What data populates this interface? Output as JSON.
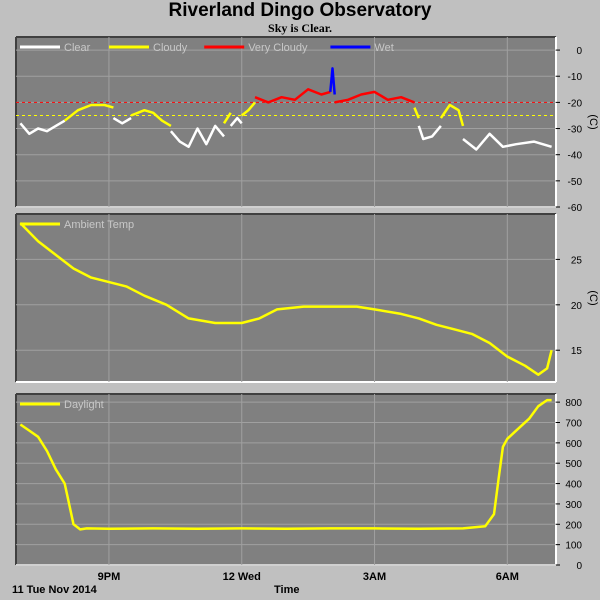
{
  "header": {
    "title": "Riverland Dingo Observatory",
    "subtitle": "Sky is Clear."
  },
  "footer": {
    "date_label": "11 Tue Nov 2014",
    "xlabel": "Time"
  },
  "colors": {
    "background": "#c0c0c0",
    "plot_bg": "#808080",
    "clear": "#ffffff",
    "cloudy": "#ffff00",
    "very_cloudy": "#ff0000",
    "wet": "#0000ff",
    "ambient": "#ffff00",
    "daylight": "#ffff00"
  },
  "chart_data": [
    {
      "id": "sky",
      "type": "line",
      "ylabel": "(C)",
      "ylim": [
        -60,
        5
      ],
      "yticks": [
        "0",
        "-10",
        "-20",
        "-30",
        "-40",
        "-50",
        "-60"
      ],
      "ytick_values": [
        0,
        -10,
        -20,
        -30,
        -40,
        -50,
        -60
      ],
      "xtick_labels": [
        "9PM",
        "12 Wed",
        "3AM",
        "6AM"
      ],
      "xtick_hours": [
        21,
        24,
        27,
        30
      ],
      "xlim_hours": [
        18.9,
        31.1
      ],
      "legend": [
        {
          "name": "Clear",
          "color": "#ffffff"
        },
        {
          "name": "Cloudy",
          "color": "#ffff00"
        },
        {
          "name": "Very Cloudy",
          "color": "#ff0000"
        },
        {
          "name": "Wet",
          "color": "#0000ff"
        }
      ],
      "thresholds": [
        {
          "value": -20,
          "color": "#ff0000"
        },
        {
          "value": -25,
          "color": "#ffff00"
        }
      ],
      "series": [
        {
          "name": "Clear",
          "color": "#ffffff",
          "x": [
            19.0,
            19.2,
            19.4,
            19.6,
            19.8,
            20.0
          ],
          "y": [
            -28,
            -32,
            -30,
            -31,
            -29,
            -27
          ]
        },
        {
          "name": "Cloudy",
          "color": "#ffff00",
          "x": [
            20.0,
            20.3,
            20.6,
            20.9,
            21.1
          ],
          "y": [
            -27,
            -23,
            -21,
            -21,
            -22
          ]
        },
        {
          "name": "Clear",
          "color": "#ffffff",
          "x": [
            21.1,
            21.3,
            21.5
          ],
          "y": [
            -26,
            -28,
            -26
          ]
        },
        {
          "name": "Cloudy",
          "color": "#ffff00",
          "x": [
            21.5,
            21.8,
            22.0,
            22.2,
            22.4
          ],
          "y": [
            -25,
            -23,
            -24,
            -27,
            -29
          ]
        },
        {
          "name": "Clear",
          "color": "#ffffff",
          "x": [
            22.4,
            22.6,
            22.8,
            23.0,
            23.2,
            23.4,
            23.6
          ],
          "y": [
            -31,
            -35,
            -37,
            -30,
            -36,
            -29,
            -33
          ]
        },
        {
          "name": "Cloudy",
          "color": "#ffff00",
          "x": [
            23.6,
            23.75
          ],
          "y": [
            -28,
            -24
          ]
        },
        {
          "name": "Clear",
          "color": "#ffffff",
          "x": [
            23.75,
            23.9,
            24.0
          ],
          "y": [
            -29,
            -26,
            -28
          ]
        },
        {
          "name": "Cloudy",
          "color": "#ffff00",
          "x": [
            24.0,
            24.15,
            24.3
          ],
          "y": [
            -25,
            -23,
            -20
          ]
        },
        {
          "name": "Very Cloudy",
          "color": "#ff0000",
          "x": [
            24.3,
            24.6,
            24.9,
            25.2,
            25.5,
            25.8,
            26.0
          ],
          "y": [
            -18,
            -20,
            -18,
            -19,
            -15,
            -17,
            -16
          ]
        },
        {
          "name": "Wet",
          "color": "#0000ff",
          "x": [
            26.0,
            26.05,
            26.1
          ],
          "y": [
            -16,
            -7,
            -17
          ]
        },
        {
          "name": "Very Cloudy",
          "color": "#ff0000",
          "x": [
            26.1,
            26.4,
            26.7,
            27.0,
            27.3,
            27.6,
            27.9
          ],
          "y": [
            -20,
            -19,
            -17,
            -16,
            -19,
            -18,
            -20
          ]
        },
        {
          "name": "Cloudy",
          "color": "#ffff00",
          "x": [
            27.9,
            28.0
          ],
          "y": [
            -22,
            -26
          ]
        },
        {
          "name": "Clear",
          "color": "#ffffff",
          "x": [
            28.0,
            28.1,
            28.3,
            28.5
          ],
          "y": [
            -29,
            -34,
            -33,
            -29
          ]
        },
        {
          "name": "Cloudy",
          "color": "#ffff00",
          "x": [
            28.5,
            28.7,
            28.9,
            29.0
          ],
          "y": [
            -26,
            -21,
            -23,
            -29
          ]
        },
        {
          "name": "Clear",
          "color": "#ffffff",
          "x": [
            29.0,
            29.3,
            29.6,
            29.9,
            30.2,
            30.6,
            31.0
          ],
          "y": [
            -34,
            -38,
            -32,
            -37,
            -36,
            -35,
            -37
          ]
        }
      ]
    },
    {
      "id": "ambient",
      "type": "line",
      "ylabel": "(C)",
      "ylim": [
        11.5,
        30
      ],
      "yticks": [
        "15",
        "20",
        "25"
      ],
      "ytick_values": [
        15,
        20,
        25
      ],
      "xtick_hours": [
        21,
        24,
        27,
        30
      ],
      "xlim_hours": [
        18.9,
        31.1
      ],
      "legend": [
        {
          "name": "Ambient Temp",
          "color": "#ffff00"
        }
      ],
      "series": [
        {
          "name": "Ambient Temp",
          "color": "#ffff00",
          "x": [
            19.0,
            19.4,
            19.8,
            20.2,
            20.6,
            21.0,
            21.4,
            21.8,
            22.3,
            22.8,
            23.4,
            24.0,
            24.4,
            24.8,
            25.4,
            26.0,
            26.6,
            27.0,
            27.6,
            28.0,
            28.4,
            28.8,
            29.2,
            29.6,
            30.0,
            30.4,
            30.7,
            30.9,
            31.0
          ],
          "y": [
            29,
            27,
            25.5,
            24,
            23,
            22.5,
            22,
            21,
            20,
            18.5,
            18,
            18,
            18.5,
            19.5,
            19.8,
            19.8,
            19.8,
            19.5,
            19,
            18.5,
            17.8,
            17.3,
            16.8,
            15.8,
            14.3,
            13.3,
            12.3,
            13,
            15
          ]
        }
      ]
    },
    {
      "id": "daylight",
      "type": "line",
      "ylabel": "",
      "ylim": [
        0,
        840
      ],
      "yticks": [
        "0",
        "100",
        "200",
        "300",
        "400",
        "500",
        "600",
        "700",
        "800"
      ],
      "ytick_values": [
        0,
        100,
        200,
        300,
        400,
        500,
        600,
        700,
        800
      ],
      "xtick_hours": [
        21,
        24,
        27,
        30
      ],
      "xlim_hours": [
        18.9,
        31.1
      ],
      "legend": [
        {
          "name": "Daylight",
          "color": "#ffff00"
        }
      ],
      "series": [
        {
          "name": "Daylight",
          "color": "#ffff00",
          "x": [
            19.0,
            19.2,
            19.4,
            19.6,
            19.8,
            20.0,
            20.1,
            20.2,
            20.35,
            20.5,
            21.0,
            22.0,
            23.0,
            24.0,
            25.0,
            26.0,
            27.0,
            28.0,
            29.0,
            29.5,
            29.7,
            29.8,
            29.9,
            30.0,
            30.2,
            30.5,
            30.7,
            30.9,
            31.0
          ],
          "y": [
            690,
            660,
            630,
            560,
            470,
            400,
            300,
            200,
            175,
            180,
            178,
            180,
            178,
            180,
            178,
            180,
            180,
            178,
            180,
            190,
            250,
            420,
            580,
            620,
            660,
            720,
            780,
            810,
            810
          ]
        }
      ]
    }
  ]
}
